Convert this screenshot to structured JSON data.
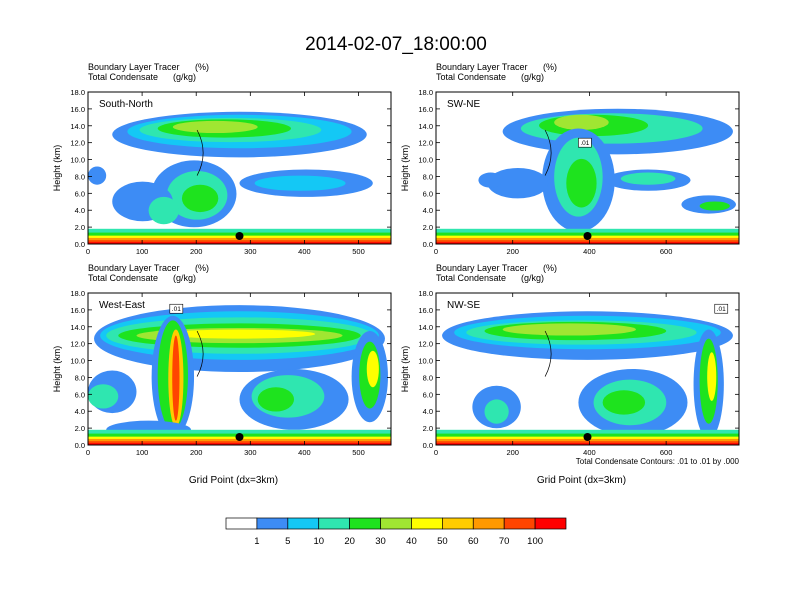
{
  "title": "2014-02-07_18:00:00",
  "chart_data": [
    {
      "type": "heatmap",
      "title": "South-North",
      "subtitle_left_1": "Boundary Layer Tracer",
      "subtitle_unit_1": "(%)",
      "subtitle_left_2": "Total Condensate",
      "subtitle_unit_2": "(g/kg)",
      "ylabel": "Height (km)",
      "xlabel": "",
      "xlim": [
        0,
        560
      ],
      "ylim": [
        0,
        18
      ],
      "xticks": [
        0,
        100,
        200,
        300,
        400,
        500
      ],
      "yticks": [
        "0.0",
        "2.0",
        "4.0",
        "6.0",
        "8.0",
        "10.0",
        "12.0",
        "14.0",
        "16.0",
        "18.0"
      ],
      "marker_x": 280,
      "contour_label": ""
    },
    {
      "type": "heatmap",
      "title": "SW-NE",
      "subtitle_left_1": "Boundary Layer Tracer",
      "subtitle_unit_1": "(%)",
      "subtitle_left_2": "Total Condensate",
      "subtitle_unit_2": "(g/kg)",
      "ylabel": "Height (km)",
      "xlabel": "",
      "xlim": [
        0,
        790
      ],
      "ylim": [
        0,
        18
      ],
      "xticks": [
        0,
        200,
        400,
        600
      ],
      "yticks": [
        "0.0",
        "2.0",
        "4.0",
        "6.0",
        "8.0",
        "10.0",
        "12.0",
        "14.0",
        "16.0",
        "18.0"
      ],
      "marker_x": 395,
      "contour_label": ".01"
    },
    {
      "type": "heatmap",
      "title": "West-East",
      "subtitle_left_1": "Boundary Layer Tracer",
      "subtitle_unit_1": "(%)",
      "subtitle_left_2": "Total Condensate",
      "subtitle_unit_2": "(g/kg)",
      "ylabel": "Height (km)",
      "xlabel": "Grid Point (dx=3km)",
      "xlim": [
        0,
        560
      ],
      "ylim": [
        0,
        18
      ],
      "xticks": [
        0,
        100,
        200,
        300,
        400,
        500
      ],
      "yticks": [
        "0.0",
        "2.0",
        "4.0",
        "6.0",
        "8.0",
        "10.0",
        "12.0",
        "14.0",
        "16.0",
        "18.0"
      ],
      "marker_x": 280,
      "contour_label": ".01"
    },
    {
      "type": "heatmap",
      "title": "NW-SE",
      "subtitle_left_1": "Boundary Layer Tracer",
      "subtitle_unit_1": "(%)",
      "subtitle_left_2": "Total Condensate",
      "subtitle_unit_2": "(g/kg)",
      "ylabel": "Height (km)",
      "xlabel": "Grid Point (dx=3km)",
      "xlim": [
        0,
        790
      ],
      "ylim": [
        0,
        18
      ],
      "xticks": [
        0,
        200,
        400,
        600
      ],
      "yticks": [
        "0.0",
        "2.0",
        "4.0",
        "6.0",
        "8.0",
        "10.0",
        "12.0",
        "14.0",
        "16.0",
        "18.0"
      ],
      "marker_x": 395,
      "contour_label": ".01"
    }
  ],
  "contour_note": "Total Condensate Contours: .01 to .01 by .000",
  "colorbar": {
    "levels": [
      "1",
      "5",
      "10",
      "20",
      "30",
      "40",
      "50",
      "60",
      "70",
      "100"
    ],
    "colors": [
      "#ffffff",
      "#3d8cf5",
      "#14c8f5",
      "#2fe6b0",
      "#1ee31e",
      "#a0e632",
      "#ffff00",
      "#ffcc00",
      "#ff9900",
      "#ff4500",
      "#ff0000"
    ]
  }
}
